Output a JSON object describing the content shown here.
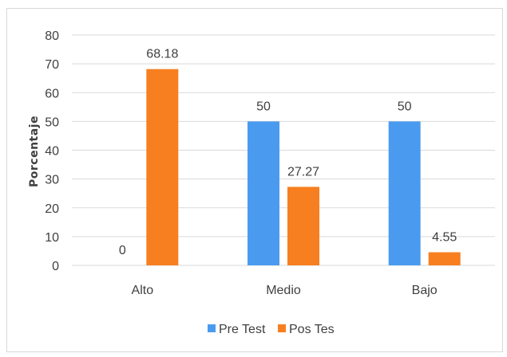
{
  "chart_data": {
    "type": "bar",
    "categories": [
      "Alto",
      "Medio",
      "Bajo"
    ],
    "series": [
      {
        "name": "Pre Test",
        "values": [
          0,
          50,
          50
        ],
        "labels": [
          "0",
          "50",
          "50"
        ],
        "color": "#4a9bf0"
      },
      {
        "name": "Pos Tes",
        "values": [
          68.18,
          27.27,
          4.55
        ],
        "labels": [
          "68.18",
          "27.27",
          "4.55"
        ],
        "color": "#f77f1f"
      }
    ],
    "ylabel": "Porcentaje",
    "xlabel": "",
    "ylim": [
      0,
      80
    ],
    "yticks": [
      "0",
      "10",
      "20",
      "30",
      "40",
      "50",
      "60",
      "70",
      "80"
    ],
    "grid": true,
    "legend_position": "bottom"
  }
}
